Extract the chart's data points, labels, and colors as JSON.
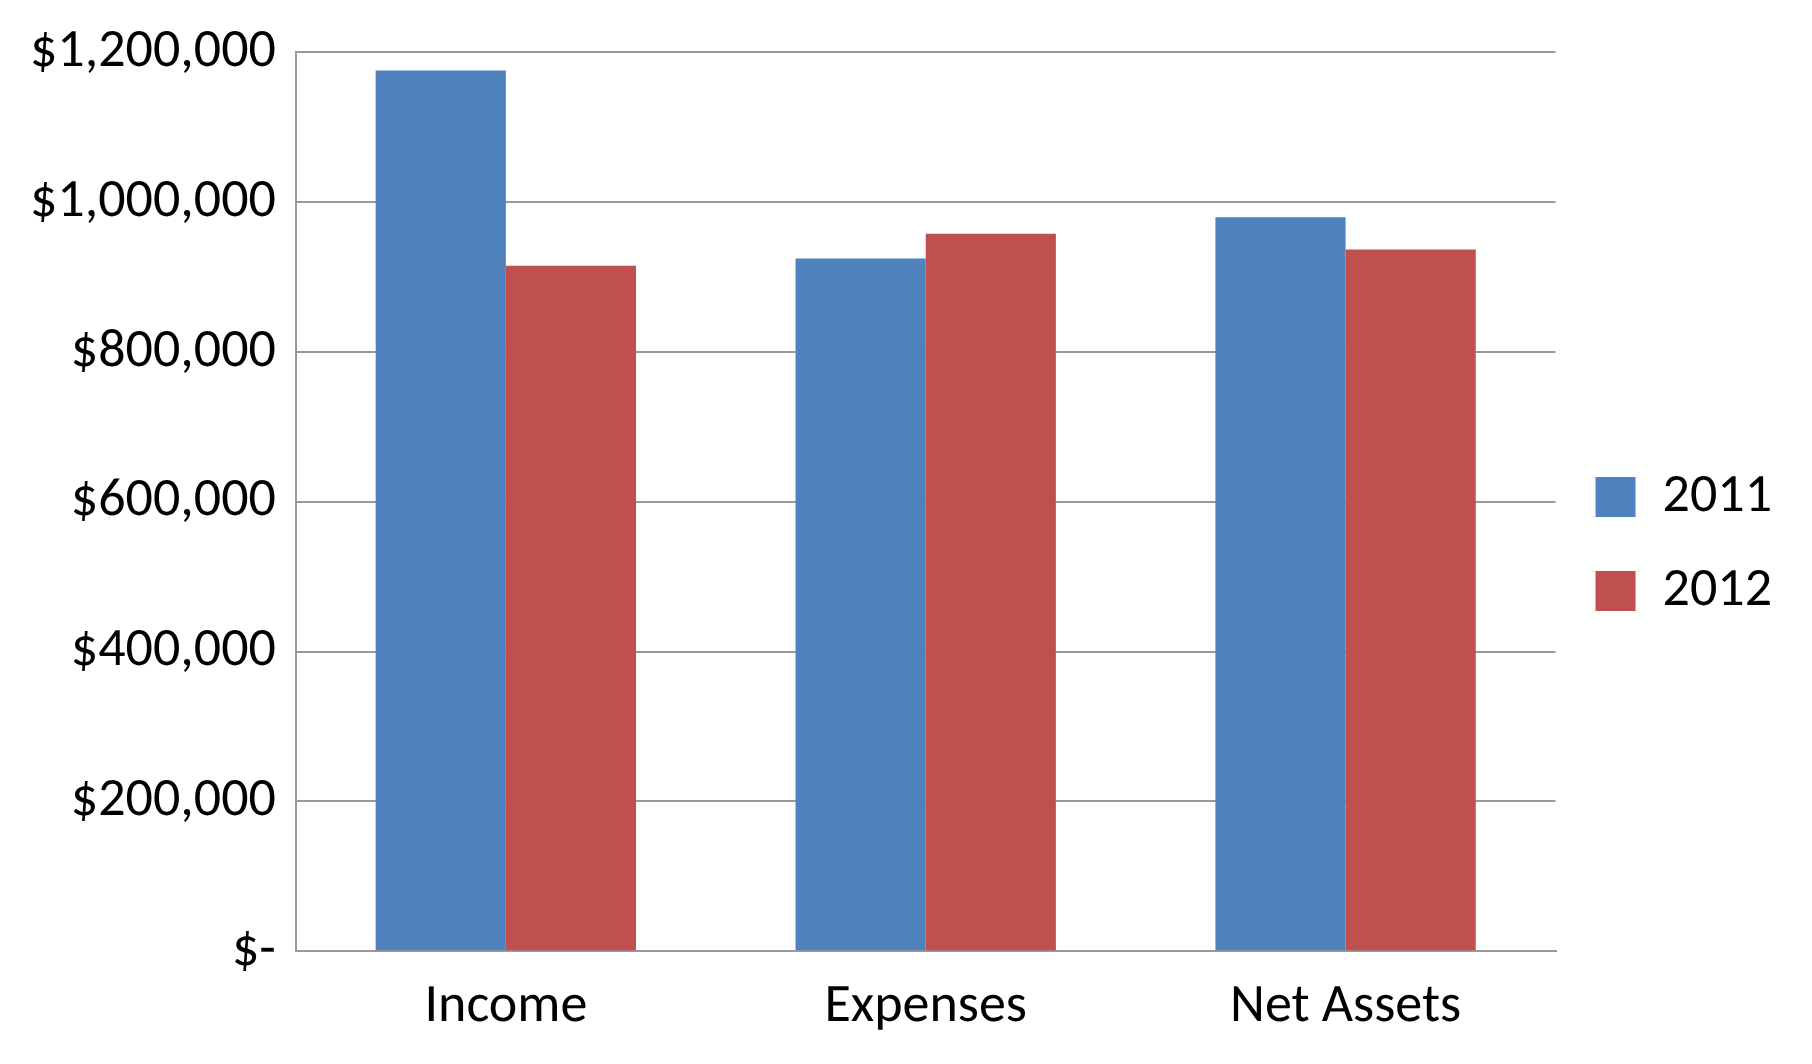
{
  "chart_data": {
    "type": "bar",
    "categories": [
      "Income",
      "Expenses",
      "Net Assets"
    ],
    "series": [
      {
        "name": "2011",
        "color": "#4f81bd",
        "values": [
          1176000,
          925000,
          980000
        ]
      },
      {
        "name": "2012",
        "color": "#c0504d",
        "values": [
          915000,
          958000,
          937000
        ]
      }
    ],
    "ylim": [
      0,
      1200000
    ],
    "yticks": [
      {
        "value": 0,
        "label": "$-"
      },
      {
        "value": 200000,
        "label": "$200,000"
      },
      {
        "value": 400000,
        "label": "$400,000"
      },
      {
        "value": 600000,
        "label": "$600,000"
      },
      {
        "value": 800000,
        "label": "$800,000"
      },
      {
        "value": 1000000,
        "label": "$1,000,000"
      },
      {
        "value": 1200000,
        "label": "$1,200,000"
      }
    ],
    "grid": "y",
    "legend": "right"
  }
}
